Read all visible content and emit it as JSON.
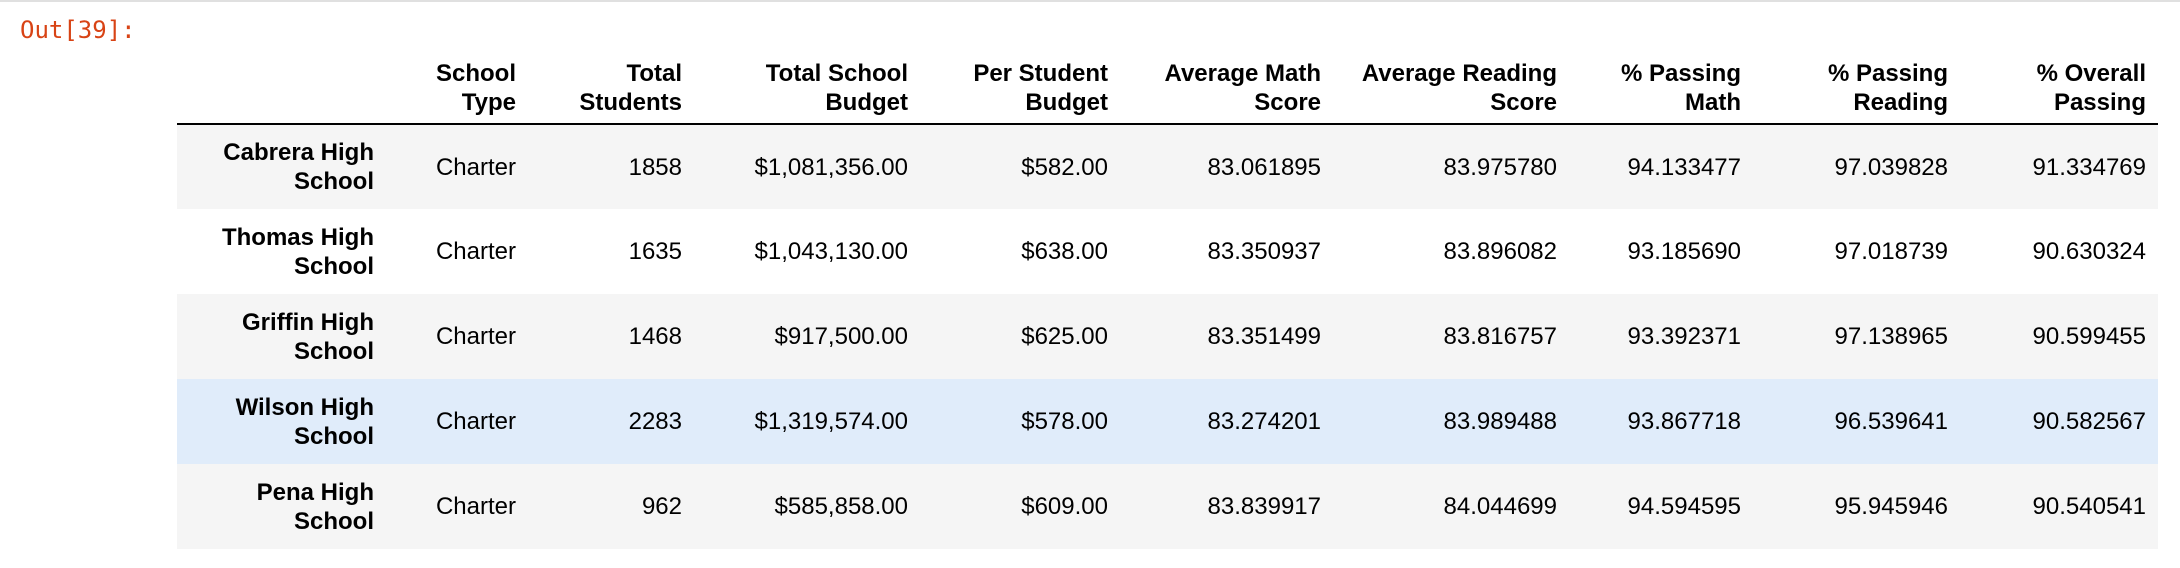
{
  "output_label": "Out[39]:",
  "table": {
    "columns": [
      "School Type",
      "Total Students",
      "Total School Budget",
      "Per Student Budget",
      "Average Math Score",
      "Average Reading Score",
      "% Passing Math",
      "% Passing Reading",
      "% Overall Passing"
    ],
    "rows": [
      {
        "index": "Cabrera High School",
        "cells": [
          "Charter",
          "1858",
          "$1,081,356.00",
          "$582.00",
          "83.061895",
          "83.975780",
          "94.133477",
          "97.039828",
          "91.334769"
        ]
      },
      {
        "index": "Thomas High School",
        "cells": [
          "Charter",
          "1635",
          "$1,043,130.00",
          "$638.00",
          "83.350937",
          "83.896082",
          "93.185690",
          "97.018739",
          "90.630324"
        ]
      },
      {
        "index": "Griffin High School",
        "cells": [
          "Charter",
          "1468",
          "$917,500.00",
          "$625.00",
          "83.351499",
          "83.816757",
          "93.392371",
          "97.138965",
          "90.599455"
        ]
      },
      {
        "index": "Wilson High School",
        "cells": [
          "Charter",
          "2283",
          "$1,319,574.00",
          "$578.00",
          "83.274201",
          "83.989488",
          "93.867718",
          "96.539641",
          "90.582567"
        ]
      },
      {
        "index": "Pena High School",
        "cells": [
          "Charter",
          "962",
          "$585,858.00",
          "$609.00",
          "83.839917",
          "84.044699",
          "94.594595",
          "95.945946",
          "90.540541"
        ]
      }
    ]
  }
}
